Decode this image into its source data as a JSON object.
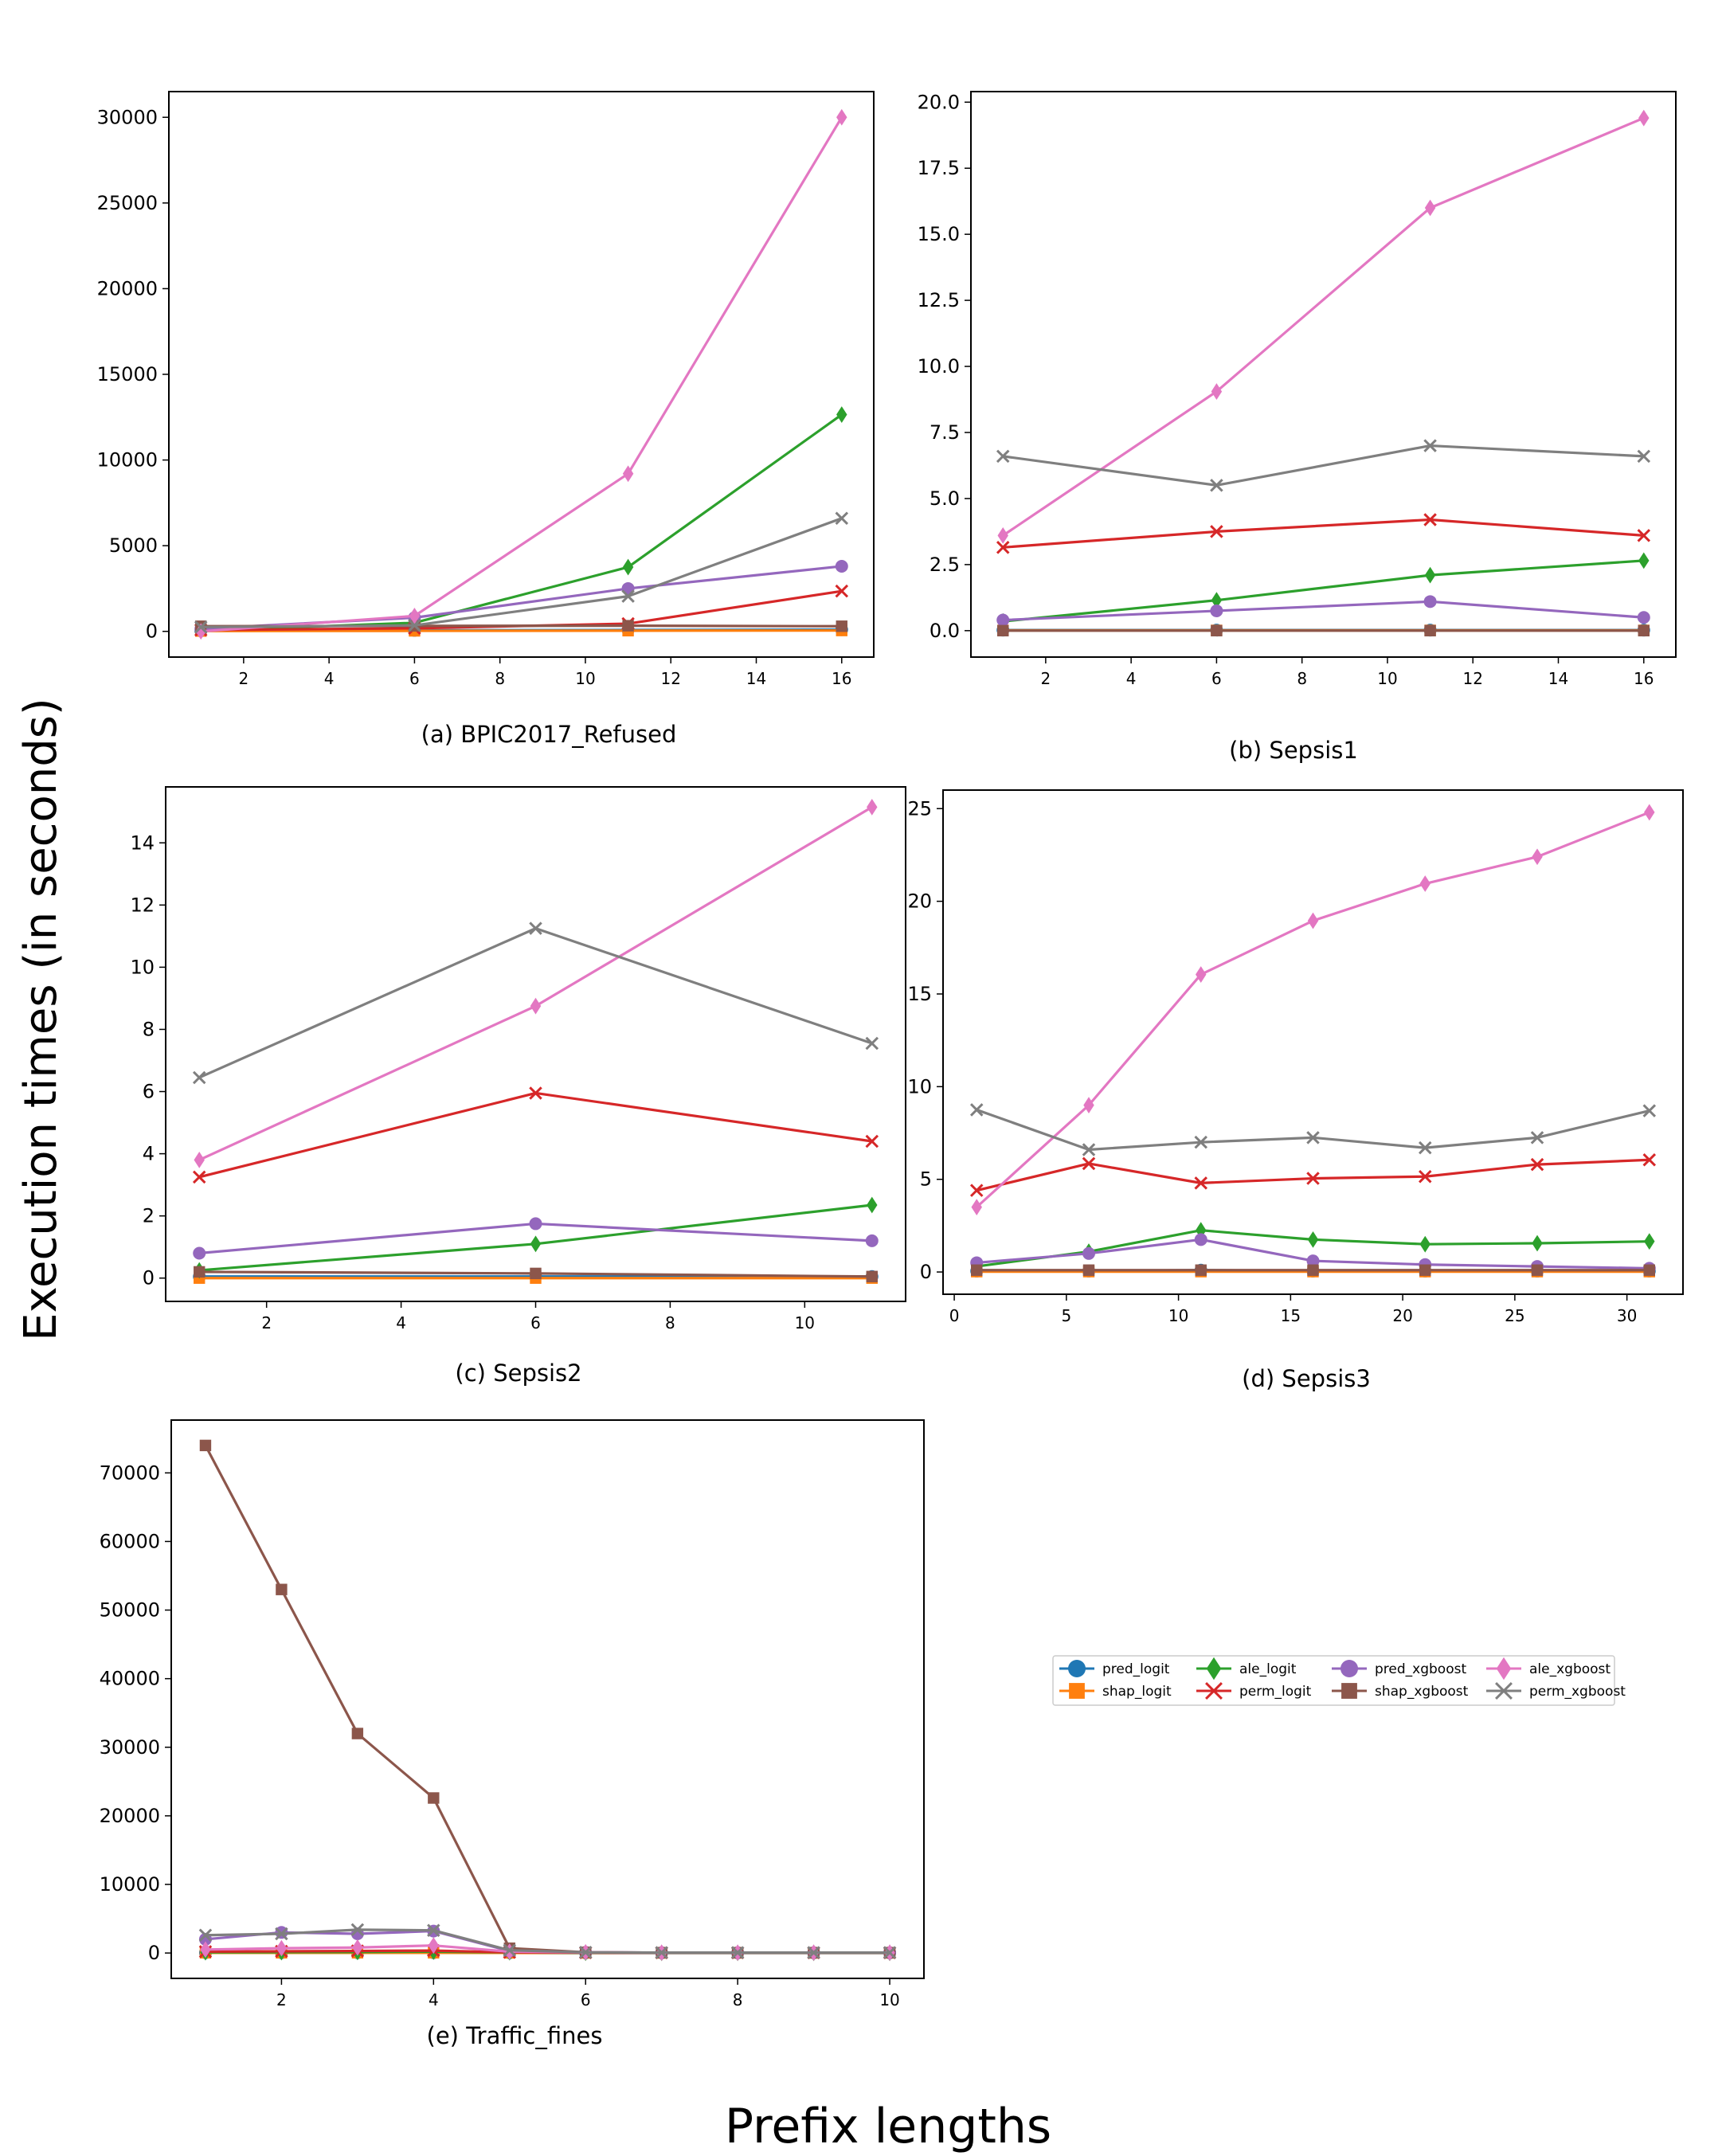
{
  "figure": {
    "ylabel": "Execution times (in seconds)",
    "xlabel": "Prefix lengths"
  },
  "styles": {
    "pred_logit": {
      "color": "#1f77b4",
      "marker": "circle"
    },
    "shap_logit": {
      "color": "#ff7f0e",
      "marker": "square"
    },
    "ale_logit": {
      "color": "#2ca02c",
      "marker": "diamond"
    },
    "perm_logit": {
      "color": "#d62728",
      "marker": "x"
    },
    "pred_xgboost": {
      "color": "#9467bd",
      "marker": "circle"
    },
    "shap_xgboost": {
      "color": "#8c564b",
      "marker": "square"
    },
    "ale_xgboost": {
      "color": "#e377c2",
      "marker": "diamond"
    },
    "perm_xgboost": {
      "color": "#7f7f7f",
      "marker": "x"
    }
  },
  "legend": {
    "entries": [
      "pred_logit",
      "shap_logit",
      "ale_logit",
      "perm_logit",
      "pred_xgboost",
      "shap_xgboost",
      "ale_xgboost",
      "perm_xgboost"
    ]
  },
  "chart_data": [
    {
      "id": "a",
      "type": "line",
      "caption": "(a) BPIC2017_Refused",
      "x": [
        1,
        6,
        11,
        16
      ],
      "xlim": [
        0.25,
        16.75
      ],
      "ylim": [
        -1500,
        31500
      ],
      "xticks": [
        2,
        4,
        6,
        8,
        10,
        12,
        14,
        16
      ],
      "yticks": [
        0,
        5000,
        10000,
        15000,
        20000,
        25000,
        30000
      ],
      "series": [
        {
          "name": "pred_logit",
          "values": [
            30,
            60,
            80,
            100
          ]
        },
        {
          "name": "shap_logit",
          "values": [
            20,
            30,
            40,
            50
          ]
        },
        {
          "name": "ale_logit",
          "values": [
            40,
            500,
            3750,
            12650
          ]
        },
        {
          "name": "perm_logit",
          "values": [
            80,
            180,
            450,
            2350
          ]
        },
        {
          "name": "pred_xgboost",
          "values": [
            150,
            800,
            2500,
            3800
          ]
        },
        {
          "name": "shap_xgboost",
          "values": [
            300,
            320,
            330,
            300
          ]
        },
        {
          "name": "ale_xgboost",
          "values": [
            0,
            900,
            9200,
            30000
          ]
        },
        {
          "name": "perm_xgboost",
          "values": [
            250,
            350,
            2050,
            6600
          ]
        }
      ]
    },
    {
      "id": "b",
      "type": "line",
      "caption": "(b) Sepsis1",
      "x": [
        1,
        6,
        11,
        16
      ],
      "xlim": [
        0.25,
        16.75
      ],
      "ylim": [
        -1.0,
        20.4
      ],
      "xticks": [
        2,
        4,
        6,
        8,
        10,
        12,
        14,
        16
      ],
      "yticks": [
        0.0,
        2.5,
        5.0,
        7.5,
        10.0,
        12.5,
        15.0,
        17.5,
        20.0
      ],
      "yformat": 1,
      "series": [
        {
          "name": "pred_logit",
          "values": [
            0.02,
            0.02,
            0.02,
            0.02
          ]
        },
        {
          "name": "shap_logit",
          "values": [
            0.01,
            0.01,
            0.01,
            0.01
          ]
        },
        {
          "name": "ale_logit",
          "values": [
            0.35,
            1.15,
            2.1,
            2.65
          ]
        },
        {
          "name": "perm_logit",
          "values": [
            3.15,
            3.75,
            4.2,
            3.6
          ]
        },
        {
          "name": "pred_xgboost",
          "values": [
            0.4,
            0.75,
            1.1,
            0.5
          ]
        },
        {
          "name": "shap_xgboost",
          "values": [
            0.0,
            0.0,
            0.0,
            0.0
          ]
        },
        {
          "name": "ale_xgboost",
          "values": [
            3.6,
            9.05,
            16.0,
            19.4
          ]
        },
        {
          "name": "perm_xgboost",
          "values": [
            6.6,
            5.5,
            7.0,
            6.6
          ]
        }
      ]
    },
    {
      "id": "c",
      "type": "line",
      "caption": "(c) Sepsis2",
      "x": [
        1,
        6,
        11
      ],
      "xlim": [
        0.5,
        11.5
      ],
      "ylim": [
        -0.75,
        15.8
      ],
      "xticks": [
        2,
        4,
        6,
        8,
        10
      ],
      "yticks": [
        0,
        2,
        4,
        6,
        8,
        10,
        12,
        14
      ],
      "series": [
        {
          "name": "pred_logit",
          "values": [
            0.05,
            0.05,
            0.05
          ]
        },
        {
          "name": "shap_logit",
          "values": [
            0.0,
            0.0,
            0.0
          ]
        },
        {
          "name": "ale_logit",
          "values": [
            0.25,
            1.1,
            2.35
          ]
        },
        {
          "name": "perm_logit",
          "values": [
            3.25,
            5.95,
            4.4
          ]
        },
        {
          "name": "pred_xgboost",
          "values": [
            0.8,
            1.75,
            1.2
          ]
        },
        {
          "name": "shap_xgboost",
          "values": [
            0.2,
            0.15,
            0.05
          ]
        },
        {
          "name": "ale_xgboost",
          "values": [
            3.8,
            8.75,
            15.15
          ]
        },
        {
          "name": "perm_xgboost",
          "values": [
            6.45,
            11.25,
            7.55
          ]
        }
      ]
    },
    {
      "id": "d",
      "type": "line",
      "caption": "(d) Sepsis3",
      "x": [
        1,
        6,
        11,
        16,
        21,
        26,
        31
      ],
      "xlim": [
        -0.5,
        32.5
      ],
      "ylim": [
        -1.2,
        26.0
      ],
      "xticks": [
        0,
        5,
        10,
        15,
        20,
        25,
        30
      ],
      "yticks": [
        0,
        5,
        10,
        15,
        20,
        25
      ],
      "series": [
        {
          "name": "pred_logit",
          "values": [
            0.05,
            0.05,
            0.1,
            0.05,
            0.05,
            0.05,
            0.05
          ]
        },
        {
          "name": "shap_logit",
          "values": [
            0.02,
            0.02,
            0.02,
            0.02,
            0.02,
            0.02,
            0.02
          ]
        },
        {
          "name": "ale_logit",
          "values": [
            0.3,
            1.1,
            2.25,
            1.75,
            1.5,
            1.55,
            1.65
          ]
        },
        {
          "name": "perm_logit",
          "values": [
            4.4,
            5.85,
            4.8,
            5.05,
            5.15,
            5.8,
            6.05
          ]
        },
        {
          "name": "pred_xgboost",
          "values": [
            0.5,
            1.0,
            1.75,
            0.6,
            0.4,
            0.3,
            0.2
          ]
        },
        {
          "name": "shap_xgboost",
          "values": [
            0.1,
            0.1,
            0.1,
            0.1,
            0.1,
            0.1,
            0.1
          ]
        },
        {
          "name": "ale_xgboost",
          "values": [
            3.5,
            9.0,
            16.05,
            18.95,
            20.95,
            22.4,
            24.8
          ]
        },
        {
          "name": "perm_xgboost",
          "values": [
            8.75,
            6.6,
            7.0,
            7.25,
            6.7,
            7.25,
            8.7
          ]
        }
      ]
    },
    {
      "id": "e",
      "type": "line",
      "caption": "(e) Traffic_fines",
      "x": [
        1,
        2,
        3,
        4,
        5,
        6,
        7,
        8,
        9,
        10
      ],
      "xlim": [
        0.55,
        10.45
      ],
      "ylim": [
        -3700,
        77700
      ],
      "xticks": [
        2,
        4,
        6,
        8,
        10
      ],
      "yticks": [
        0,
        10000,
        20000,
        30000,
        40000,
        50000,
        60000,
        70000
      ],
      "series": [
        {
          "name": "pred_logit",
          "values": [
            50,
            50,
            50,
            50,
            30,
            20,
            20,
            20,
            20,
            20
          ]
        },
        {
          "name": "shap_logit",
          "values": [
            30,
            30,
            30,
            30,
            20,
            10,
            10,
            10,
            10,
            10
          ]
        },
        {
          "name": "ale_logit",
          "values": [
            100,
            120,
            150,
            200,
            100,
            30,
            20,
            20,
            20,
            20
          ]
        },
        {
          "name": "perm_logit",
          "values": [
            200,
            250,
            300,
            350,
            100,
            50,
            30,
            30,
            30,
            30
          ]
        },
        {
          "name": "pred_xgboost",
          "values": [
            2000,
            3000,
            2800,
            3200,
            300,
            100,
            50,
            50,
            50,
            50
          ]
        },
        {
          "name": "shap_xgboost",
          "values": [
            74000,
            53000,
            32000,
            22600,
            700,
            100,
            50,
            50,
            50,
            50
          ]
        },
        {
          "name": "ale_xgboost",
          "values": [
            500,
            700,
            800,
            1100,
            200,
            100,
            50,
            50,
            50,
            50
          ]
        },
        {
          "name": "perm_xgboost",
          "values": [
            2600,
            2800,
            3400,
            3300,
            400,
            100,
            60,
            60,
            60,
            60
          ]
        }
      ]
    }
  ]
}
